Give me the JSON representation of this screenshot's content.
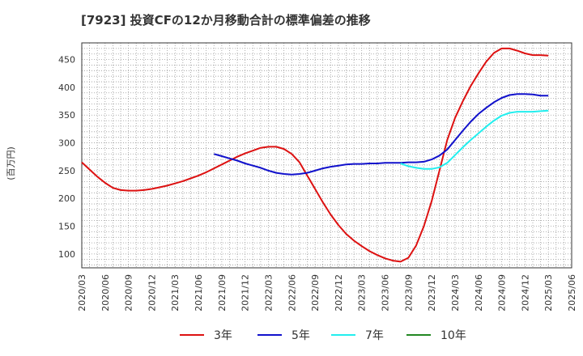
{
  "chart_data": {
    "type": "line",
    "title": "[7923]  投資CFの12か月移動合計の標準偏差の推移",
    "ylabel": "(百万円)",
    "xlabel": "",
    "ylim": [
      75,
      480
    ],
    "yticks": [
      100,
      150,
      200,
      250,
      300,
      350,
      400,
      450
    ],
    "xticks": [
      "2020/03",
      "2020/06",
      "2020/09",
      "2020/12",
      "2021/03",
      "2021/06",
      "2021/09",
      "2021/12",
      "2022/03",
      "2022/06",
      "2022/09",
      "2022/12",
      "2023/03",
      "2023/06",
      "2023/09",
      "2023/12",
      "2024/03",
      "2024/06",
      "2024/09",
      "2024/12",
      "2025/03",
      "2025/06"
    ],
    "grid": true,
    "legend_position": "bottom",
    "series": [
      {
        "name": "3年",
        "color": "#dd1111",
        "x": [
          "2020/03",
          "2020/04",
          "2020/05",
          "2020/06",
          "2020/07",
          "2020/08",
          "2020/09",
          "2020/10",
          "2020/11",
          "2020/12",
          "2021/01",
          "2021/02",
          "2021/03",
          "2021/04",
          "2021/05",
          "2021/06",
          "2021/07",
          "2021/08",
          "2021/09",
          "2021/10",
          "2021/11",
          "2021/12",
          "2022/01",
          "2022/02",
          "2022/03",
          "2022/04",
          "2022/05",
          "2022/06",
          "2022/07",
          "2022/08",
          "2022/09",
          "2022/10",
          "2022/11",
          "2022/12",
          "2023/01",
          "2023/02",
          "2023/03",
          "2023/04",
          "2023/05",
          "2023/06",
          "2023/07",
          "2023/08",
          "2023/09",
          "2023/10",
          "2023/11",
          "2023/12",
          "2024/01",
          "2024/02",
          "2024/03",
          "2024/04",
          "2024/05",
          "2024/06",
          "2024/07",
          "2024/08",
          "2024/09",
          "2024/10",
          "2024/11",
          "2024/12",
          "2025/01",
          "2025/02",
          "2025/03"
        ],
        "values": [
          265,
          252,
          239,
          228,
          219,
          215,
          214,
          214,
          215,
          217,
          220,
          223,
          227,
          231,
          236,
          241,
          247,
          254,
          261,
          268,
          275,
          281,
          286,
          291,
          293,
          293,
          289,
          280,
          265,
          241,
          217,
          193,
          171,
          152,
          136,
          124,
          114,
          105,
          98,
          92,
          88,
          86,
          93,
          115,
          150,
          195,
          250,
          305,
          345,
          375,
          402,
          425,
          446,
          462,
          470,
          470,
          466,
          461,
          458,
          458,
          457
        ]
      },
      {
        "name": "5年",
        "color": "#1111cc",
        "x": [
          "2021/08",
          "2021/09",
          "2021/10",
          "2021/11",
          "2021/12",
          "2022/01",
          "2022/02",
          "2022/03",
          "2022/04",
          "2022/05",
          "2022/06",
          "2022/07",
          "2022/08",
          "2022/09",
          "2022/10",
          "2022/11",
          "2022/12",
          "2023/01",
          "2023/02",
          "2023/03",
          "2023/04",
          "2023/05",
          "2023/06",
          "2023/07",
          "2023/08",
          "2023/09",
          "2023/10",
          "2023/11",
          "2023/12",
          "2024/01",
          "2024/02",
          "2024/03",
          "2024/04",
          "2024/05",
          "2024/06",
          "2024/07",
          "2024/08",
          "2024/09",
          "2024/10",
          "2024/11",
          "2024/12",
          "2025/01",
          "2025/02",
          "2025/03"
        ],
        "values": [
          280,
          276,
          272,
          268,
          263,
          259,
          255,
          250,
          246,
          244,
          243,
          244,
          246,
          250,
          254,
          257,
          259,
          261,
          262,
          262,
          263,
          263,
          264,
          264,
          264,
          265,
          265,
          266,
          270,
          277,
          288,
          305,
          322,
          338,
          352,
          363,
          373,
          381,
          386,
          388,
          388,
          387,
          385,
          385
        ]
      },
      {
        "name": "7年",
        "color": "#22eeee",
        "x": [
          "2023/08",
          "2023/09",
          "2023/10",
          "2023/11",
          "2023/12",
          "2024/01",
          "2024/02",
          "2024/03",
          "2024/04",
          "2024/05",
          "2024/06",
          "2024/07",
          "2024/08",
          "2024/09",
          "2024/10",
          "2024/11",
          "2024/12",
          "2025/01",
          "2025/02",
          "2025/03"
        ],
        "values": [
          263,
          258,
          255,
          253,
          253,
          256,
          264,
          278,
          292,
          305,
          317,
          329,
          340,
          349,
          354,
          356,
          356,
          356,
          357,
          358
        ]
      },
      {
        "name": "10年",
        "color": "#228822",
        "x": [],
        "values": []
      }
    ]
  }
}
